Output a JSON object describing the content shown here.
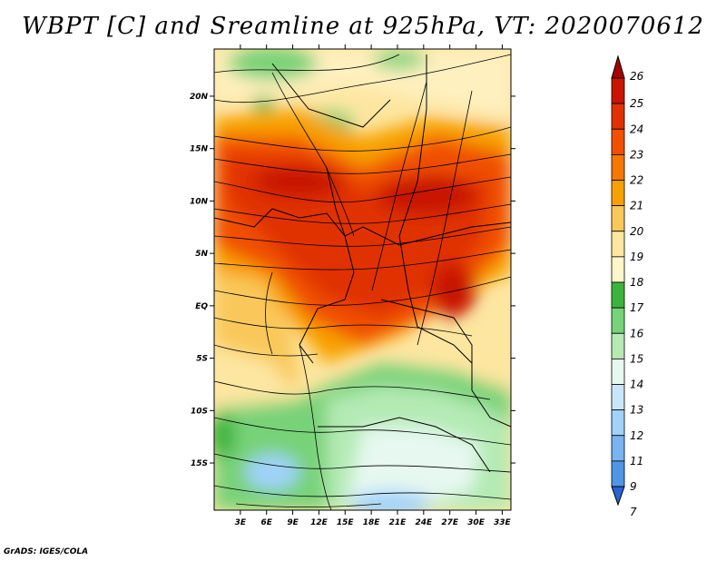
{
  "title": "WBPT [C] and Sreamline at 925hPa, VT: 2020070612",
  "credit": "GrADS: IGES/COLA",
  "map": {
    "lon_labels": [
      "3E",
      "6E",
      "9E",
      "12E",
      "15E",
      "18E",
      "21E",
      "24E",
      "27E",
      "30E",
      "33E"
    ],
    "lat_labels": [
      "20N",
      "15N",
      "10N",
      "5N",
      "EQ",
      "5S",
      "10S",
      "15S"
    ],
    "lon_range": [
      0,
      34
    ],
    "lat_range": [
      -19.5,
      24.5
    ]
  },
  "colorbar": {
    "levels": [
      "26",
      "25",
      "24",
      "23",
      "22",
      "21",
      "20",
      "19",
      "18",
      "17",
      "16",
      "15",
      "14",
      "13",
      "12",
      "11",
      "9",
      "7"
    ],
    "colors": [
      "#a50000",
      "#c81400",
      "#e03200",
      "#f05000",
      "#f47800",
      "#f8a000",
      "#fac85a",
      "#fde6a0",
      "#fff5c8",
      "#3cb43c",
      "#78d278",
      "#b4eab4",
      "#e6f8f0",
      "#c8e6fa",
      "#a0d2fa",
      "#78b4f0",
      "#5096e6",
      "#2864d2"
    ]
  }
}
